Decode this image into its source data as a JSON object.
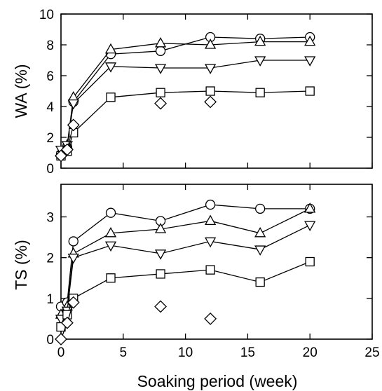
{
  "chart_data": [
    {
      "type": "scatter",
      "panel": "top",
      "ylabel": "WA (%)",
      "xlabel": "",
      "xlim": [
        0,
        25
      ],
      "ylim": [
        0,
        10
      ],
      "x_ticks": [
        0,
        5,
        10,
        15,
        20,
        25
      ],
      "y_ticks": [
        0,
        2,
        4,
        6,
        8,
        10
      ],
      "x_tick_labels_shown": false,
      "grid": false,
      "legend": "none",
      "series": [
        {
          "marker": "circle",
          "connected": true,
          "x": [
            0,
            0.5,
            1,
            4,
            8,
            12,
            16,
            20
          ],
          "y": [
            0.9,
            1.4,
            4.3,
            7.4,
            7.6,
            8.5,
            8.4,
            8.5
          ]
        },
        {
          "marker": "triangle-up",
          "connected": true,
          "x": [
            0,
            0.5,
            1,
            4,
            8,
            12,
            16,
            20
          ],
          "y": [
            1.0,
            1.5,
            4.6,
            7.7,
            8.1,
            8.0,
            8.2,
            8.2
          ]
        },
        {
          "marker": "triangle-down",
          "connected": true,
          "x": [
            0,
            0.5,
            1,
            4,
            8,
            12,
            16,
            20
          ],
          "y": [
            1.2,
            1.5,
            4.2,
            6.6,
            6.5,
            6.5,
            7.0,
            7.0
          ]
        },
        {
          "marker": "square",
          "connected": true,
          "x": [
            0,
            0.5,
            1,
            4,
            8,
            12,
            16,
            20
          ],
          "y": [
            0.8,
            1.1,
            2.3,
            4.6,
            4.9,
            5.0,
            4.9,
            5.0
          ]
        },
        {
          "marker": "diamond",
          "connected": true,
          "connect_until_index": 2,
          "x": [
            0,
            0.5,
            1,
            8,
            12
          ],
          "y": [
            0.8,
            1.2,
            2.8,
            4.2,
            4.3
          ]
        }
      ]
    },
    {
      "type": "scatter",
      "panel": "bottom",
      "ylabel": "TS (%)",
      "xlabel": "Soaking period (week)",
      "xlim": [
        0,
        25
      ],
      "ylim": [
        0,
        3.8
      ],
      "x_ticks": [
        0,
        5,
        10,
        15,
        20,
        25
      ],
      "y_ticks": [
        0,
        1,
        2,
        3
      ],
      "x_tick_labels_shown": true,
      "grid": false,
      "legend": "none",
      "series": [
        {
          "marker": "circle",
          "connected": true,
          "x": [
            0,
            0.5,
            1,
            4,
            8,
            12,
            16,
            20
          ],
          "y": [
            0.8,
            0.9,
            2.4,
            3.1,
            2.9,
            3.3,
            3.2,
            3.2
          ]
        },
        {
          "marker": "triangle-up",
          "connected": true,
          "x": [
            0,
            0.5,
            1,
            4,
            8,
            12,
            16,
            20
          ],
          "y": [
            0.6,
            0.8,
            2.1,
            2.6,
            2.7,
            2.9,
            2.6,
            3.2
          ]
        },
        {
          "marker": "triangle-down",
          "connected": true,
          "x": [
            0,
            0.5,
            1,
            4,
            8,
            12,
            16,
            20
          ],
          "y": [
            0.5,
            0.7,
            2.0,
            2.3,
            2.1,
            2.4,
            2.2,
            2.8
          ]
        },
        {
          "marker": "square",
          "connected": true,
          "x": [
            0,
            0.5,
            1,
            4,
            8,
            12,
            16,
            20
          ],
          "y": [
            0.3,
            0.6,
            1.0,
            1.5,
            1.6,
            1.7,
            1.4,
            1.9
          ]
        },
        {
          "marker": "diamond",
          "connected": true,
          "connect_until_index": 2,
          "x": [
            0,
            0.5,
            1,
            8,
            12
          ],
          "y": [
            0.0,
            0.4,
            0.9,
            0.8,
            0.5
          ]
        }
      ]
    }
  ]
}
